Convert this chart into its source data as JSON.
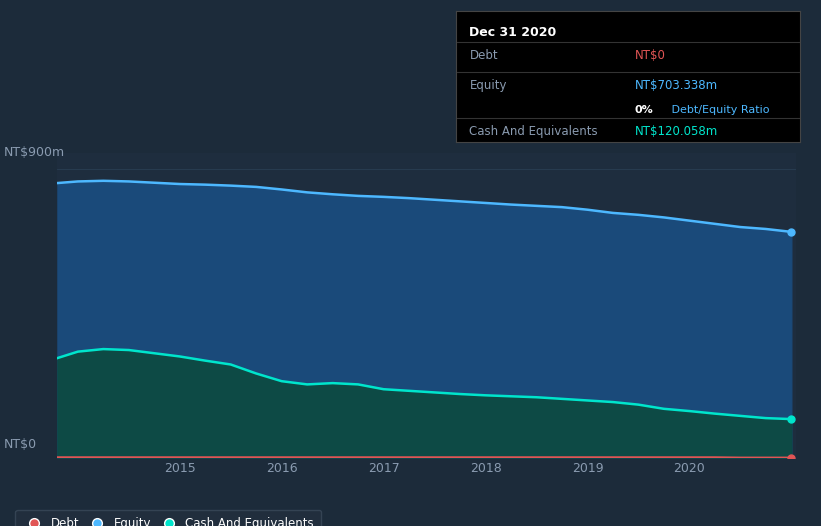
{
  "background_color": "#1c2b3a",
  "plot_bg_color": "#1e2d3e",
  "ylabel_top": "NT$900m",
  "ylabel_bottom": "NT$0",
  "tooltip": {
    "title": "Dec 31 2020",
    "debt_label": "Debt",
    "debt_value": "NT$0",
    "equity_label": "Equity",
    "equity_value": "NT$703.338m",
    "ratio_value": "0%",
    "ratio_label": " Debt/Equity Ratio",
    "cash_label": "Cash And Equivalents",
    "cash_value": "NT$120.058m"
  },
  "equity_color": "#4db8ff",
  "equity_fill": "#1a4a7a",
  "cash_color": "#00e5cc",
  "cash_fill": "#0d4a45",
  "debt_color": "#e05555",
  "debt_line_color": "#e05555",
  "grid_color": "#2a4055",
  "text_color": "#8a9bb0",
  "legend_bg": "#232f3e",
  "years": [
    2013.8,
    2014.0,
    2014.25,
    2014.5,
    2014.75,
    2015.0,
    2015.25,
    2015.5,
    2015.75,
    2016.0,
    2016.25,
    2016.5,
    2016.75,
    2017.0,
    2017.25,
    2017.5,
    2017.75,
    2018.0,
    2018.25,
    2018.5,
    2018.75,
    2019.0,
    2019.25,
    2019.5,
    2019.75,
    2020.0,
    2020.25,
    2020.5,
    2020.75,
    2021.0
  ],
  "equity_values": [
    855,
    860,
    862,
    860,
    856,
    852,
    850,
    847,
    843,
    835,
    826,
    820,
    815,
    812,
    808,
    803,
    798,
    793,
    788,
    784,
    780,
    772,
    762,
    756,
    748,
    738,
    728,
    718,
    712,
    703
  ],
  "cash_values": [
    310,
    330,
    338,
    335,
    325,
    315,
    302,
    290,
    262,
    238,
    228,
    232,
    228,
    213,
    208,
    203,
    198,
    194,
    191,
    188,
    183,
    178,
    173,
    165,
    152,
    145,
    137,
    130,
    123,
    120
  ],
  "debt_values": [
    1,
    1,
    1,
    1,
    1,
    1,
    1,
    1,
    1,
    1,
    1,
    1,
    1,
    1,
    1,
    1,
    1,
    1,
    1,
    1,
    1,
    1,
    1,
    1,
    1,
    1,
    1,
    0,
    0,
    0
  ]
}
